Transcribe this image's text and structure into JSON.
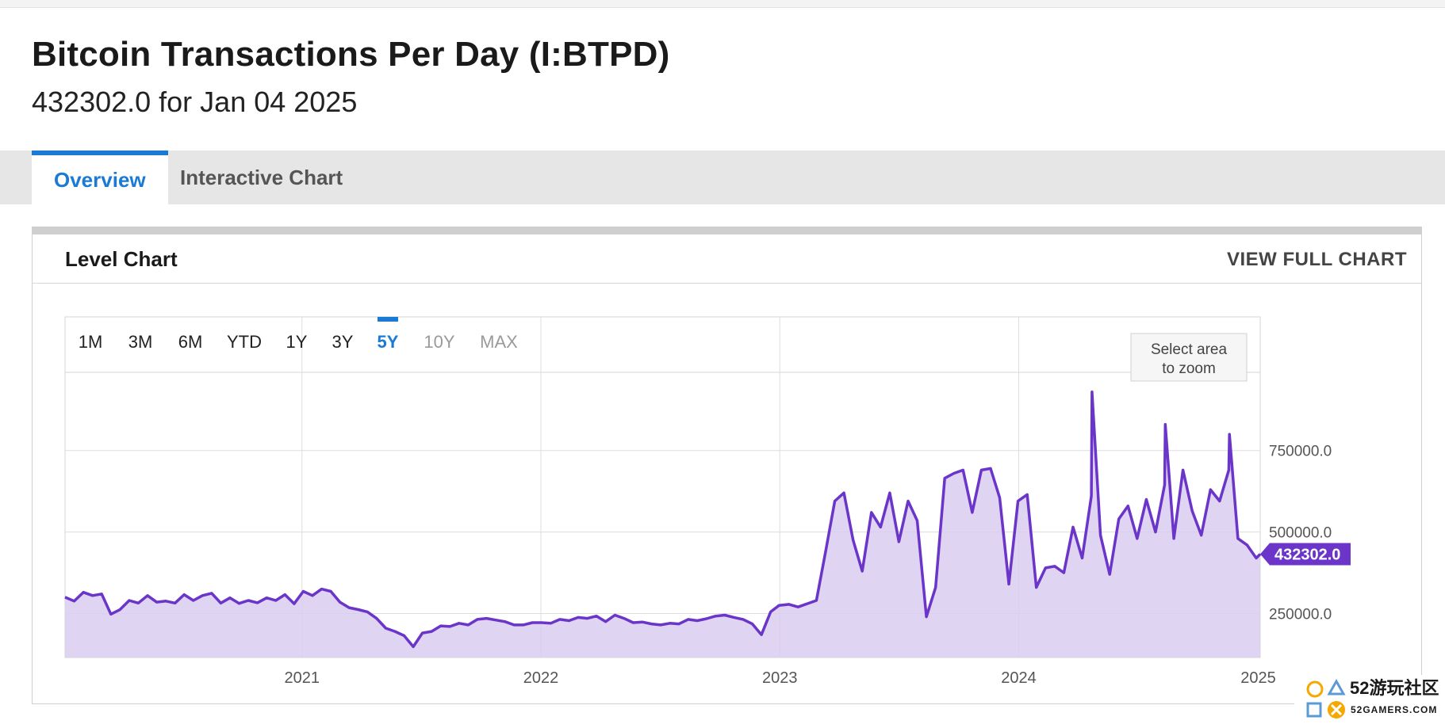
{
  "header": {
    "title": "Bitcoin Transactions Per Day (I:BTPD)",
    "subtitle": "432302.0 for Jan 04 2025"
  },
  "tabs": [
    {
      "label": "Overview",
      "active": true
    },
    {
      "label": "Interactive Chart",
      "active": false
    }
  ],
  "card": {
    "title": "Level Chart",
    "view_full": "VIEW FULL CHART"
  },
  "ranges": [
    {
      "label": "1M",
      "state": "normal"
    },
    {
      "label": "3M",
      "state": "normal"
    },
    {
      "label": "6M",
      "state": "normal"
    },
    {
      "label": "YTD",
      "state": "normal"
    },
    {
      "label": "1Y",
      "state": "normal"
    },
    {
      "label": "3Y",
      "state": "normal"
    },
    {
      "label": "5Y",
      "state": "active"
    },
    {
      "label": "10Y",
      "state": "disabled"
    },
    {
      "label": "MAX",
      "state": "disabled"
    }
  ],
  "zoom_hint": [
    "Select area",
    "to zoom"
  ],
  "watermark": {
    "text": "52游玩社区",
    "sub": "52GAMERS.COM"
  },
  "colors": {
    "accent": "#1a7ad4",
    "series": "#6a35c8",
    "fill": "#d9ccf0"
  },
  "chart_data": {
    "type": "area",
    "ytick_labels": [
      "750000.0",
      "500000.0",
      "250000.0"
    ],
    "yticks": [
      750000,
      500000,
      250000
    ],
    "xtick_labels": [
      "2021",
      "2022",
      "2023",
      "2024",
      "2025"
    ],
    "xticks": [
      "2021-01-01",
      "2022-01-01",
      "2023-01-01",
      "2024-01-01",
      "2025-01-01"
    ],
    "xlim": [
      "2020-01-05",
      "2025-01-04"
    ],
    "ylim": [
      115000,
      990000
    ],
    "last_value_label": "432302.0",
    "grid": true,
    "series": [
      {
        "x": [
          "2020-01-05",
          "2020-01-19",
          "2020-02-02",
          "2020-02-16",
          "2020-03-01",
          "2020-03-15",
          "2020-03-29",
          "2020-04-12",
          "2020-04-26",
          "2020-05-10",
          "2020-05-24",
          "2020-06-07",
          "2020-06-21",
          "2020-07-05",
          "2020-07-19",
          "2020-08-02",
          "2020-08-16",
          "2020-08-30",
          "2020-09-13",
          "2020-09-27",
          "2020-10-11",
          "2020-10-25",
          "2020-11-08",
          "2020-11-22",
          "2020-12-06",
          "2020-12-20",
          "2021-01-03",
          "2021-01-17",
          "2021-01-31",
          "2021-02-14",
          "2021-02-28",
          "2021-03-14",
          "2021-03-28",
          "2021-04-11",
          "2021-04-25",
          "2021-05-09",
          "2021-05-23",
          "2021-06-06",
          "2021-06-20",
          "2021-07-04",
          "2021-07-18",
          "2021-08-01",
          "2021-08-15",
          "2021-08-29",
          "2021-09-12",
          "2021-09-26",
          "2021-10-10",
          "2021-10-24",
          "2021-11-07",
          "2021-11-21",
          "2021-12-05",
          "2021-12-19",
          "2022-01-02",
          "2022-01-16",
          "2022-01-30",
          "2022-02-13",
          "2022-02-27",
          "2022-03-13",
          "2022-03-27",
          "2022-04-10",
          "2022-04-24",
          "2022-05-08",
          "2022-05-22",
          "2022-06-05",
          "2022-06-19",
          "2022-07-03",
          "2022-07-17",
          "2022-07-31",
          "2022-08-14",
          "2022-08-28",
          "2022-09-11",
          "2022-09-25",
          "2022-10-09",
          "2022-10-23",
          "2022-11-06",
          "2022-11-20",
          "2022-12-04",
          "2022-12-18",
          "2022-12-31",
          "2023-01-15",
          "2023-01-29",
          "2023-02-12",
          "2023-02-26",
          "2023-03-12",
          "2023-03-26",
          "2023-04-09",
          "2023-04-23",
          "2023-05-07",
          "2023-05-21",
          "2023-06-04",
          "2023-06-18",
          "2023-07-02",
          "2023-07-16",
          "2023-07-30",
          "2023-08-13",
          "2023-08-27",
          "2023-09-10",
          "2023-09-24",
          "2023-10-08",
          "2023-10-22",
          "2023-11-05",
          "2023-11-19",
          "2023-12-03",
          "2023-12-17",
          "2023-12-31",
          "2024-01-14",
          "2024-01-28",
          "2024-02-11",
          "2024-02-25",
          "2024-03-10",
          "2024-03-24",
          "2024-04-07",
          "2024-04-21",
          "2024-05-05",
          "2024-05-19",
          "2024-06-02",
          "2024-06-16",
          "2024-06-30",
          "2024-07-14",
          "2024-07-28",
          "2024-08-11",
          "2024-08-25",
          "2024-09-08",
          "2024-09-22",
          "2024-10-06",
          "2024-10-20",
          "2024-11-03",
          "2024-11-17",
          "2024-12-01",
          "2024-12-15",
          "2024-12-29",
          "2025-01-04"
        ],
        "y": [
          300000,
          288000,
          315000,
          305000,
          310000,
          248000,
          262000,
          290000,
          282000,
          305000,
          285000,
          288000,
          282000,
          308000,
          290000,
          305000,
          312000,
          282000,
          298000,
          281000,
          290000,
          283000,
          298000,
          290000,
          308000,
          280000,
          318000,
          305000,
          325000,
          318000,
          285000,
          268000,
          262000,
          255000,
          235000,
          205000,
          195000,
          182000,
          148000,
          190000,
          195000,
          212000,
          210000,
          220000,
          215000,
          232000,
          235000,
          230000,
          225000,
          215000,
          215000,
          222000,
          222000,
          220000,
          232000,
          228000,
          238000,
          235000,
          242000,
          225000,
          245000,
          235000,
          222000,
          224000,
          218000,
          215000,
          220000,
          218000,
          232000,
          228000,
          234000,
          242000,
          245000,
          238000,
          232000,
          218000,
          185000,
          255000,
          275000,
          278000,
          270000,
          280000,
          290000,
          440000,
          595000,
          620000,
          475000,
          380000,
          560000,
          515000,
          620000,
          470000,
          595000,
          535000,
          240000,
          330000,
          665000,
          680000,
          690000,
          560000,
          690000,
          695000,
          605000,
          340000,
          595000,
          615000,
          330000,
          390000,
          395000,
          375000,
          515000,
          420000,
          610000,
          490000,
          370000,
          540000,
          580000,
          480000,
          600000,
          500000,
          645000,
          480000,
          690000,
          565000,
          490000,
          630000,
          595000,
          690000,
          480000,
          460000,
          420000,
          432302
        ]
      }
    ],
    "spikes": [
      {
        "x": "2024-04-21",
        "y": 930000
      },
      {
        "x": "2024-08-11",
        "y": 830000
      },
      {
        "x": "2024-11-17",
        "y": 800000
      }
    ]
  }
}
